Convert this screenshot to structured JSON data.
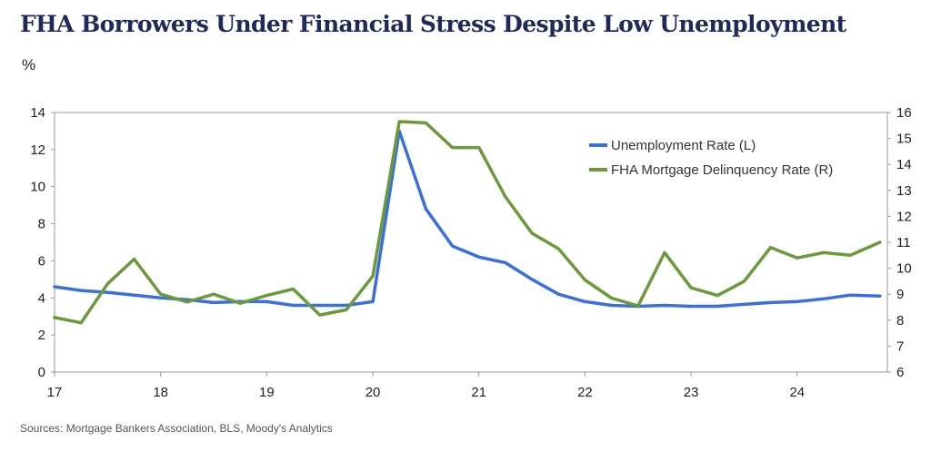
{
  "chart_data": {
    "type": "line",
    "title": "FHA Borrowers Under Financial Stress Despite Low Unemployment",
    "y_unit_label": "%",
    "source": "Sources: Mortgage Bankers Association, BLS, Moody's Analytics",
    "x_ticks": [
      "17",
      "18",
      "19",
      "20",
      "21",
      "22",
      "23",
      "24"
    ],
    "x_range": [
      2017,
      2024.85
    ],
    "y_left": {
      "min": 0,
      "max": 14,
      "ticks": [
        0,
        2,
        4,
        6,
        8,
        10,
        12,
        14
      ]
    },
    "y_right": {
      "min": 6,
      "max": 16,
      "ticks": [
        6,
        7,
        8,
        9,
        10,
        11,
        12,
        13,
        14,
        15,
        16
      ]
    },
    "legend_position": "top-right",
    "grid": false,
    "series": [
      {
        "name": "Unemployment Rate (L)",
        "axis": "left",
        "color": "#3a6fe0",
        "x": [
          2017.0,
          2017.25,
          2017.5,
          2017.75,
          2018.0,
          2018.25,
          2018.5,
          2018.75,
          2019.0,
          2019.25,
          2019.5,
          2019.75,
          2020.0,
          2020.25,
          2020.5,
          2020.75,
          2021.0,
          2021.25,
          2021.5,
          2021.75,
          2022.0,
          2022.25,
          2022.5,
          2022.75,
          2023.0,
          2023.25,
          2023.5,
          2023.75,
          2024.0,
          2024.25,
          2024.5,
          2024.78
        ],
        "values": [
          4.6,
          4.4,
          4.3,
          4.15,
          4.0,
          3.9,
          3.75,
          3.8,
          3.8,
          3.6,
          3.6,
          3.6,
          3.8,
          13.0,
          8.8,
          6.8,
          6.2,
          5.9,
          5.0,
          4.2,
          3.8,
          3.6,
          3.55,
          3.6,
          3.55,
          3.55,
          3.65,
          3.75,
          3.8,
          3.95,
          4.15,
          4.1
        ]
      },
      {
        "name": "FHA Mortgage Delinquency Rate (R)",
        "axis": "right",
        "color": "#6a9a3a",
        "x": [
          2017.0,
          2017.25,
          2017.5,
          2017.75,
          2018.0,
          2018.25,
          2018.5,
          2018.75,
          2019.0,
          2019.25,
          2019.5,
          2019.75,
          2020.0,
          2020.25,
          2020.5,
          2020.75,
          2021.0,
          2021.25,
          2021.5,
          2021.75,
          2022.0,
          2022.25,
          2022.5,
          2022.75,
          2023.0,
          2023.25,
          2023.5,
          2023.75,
          2024.0,
          2024.25,
          2024.5,
          2024.78
        ],
        "values": [
          8.1,
          7.9,
          9.4,
          10.35,
          9.0,
          8.7,
          9.0,
          8.65,
          8.95,
          9.2,
          8.2,
          8.4,
          9.7,
          15.65,
          15.6,
          14.65,
          14.65,
          12.75,
          11.35,
          10.75,
          9.55,
          8.85,
          8.55,
          10.6,
          9.25,
          8.95,
          9.5,
          10.8,
          10.4,
          10.6,
          10.5,
          11.0
        ]
      }
    ]
  }
}
